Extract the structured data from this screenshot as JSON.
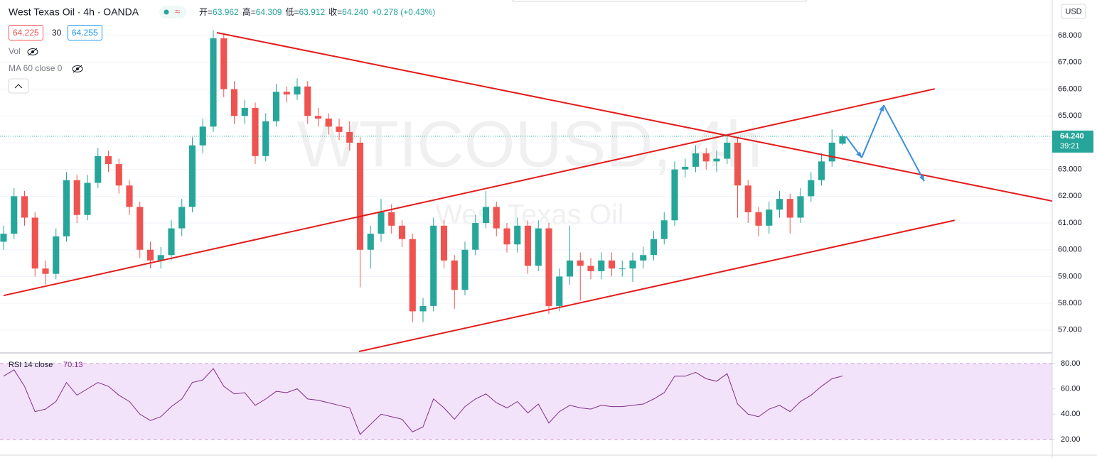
{
  "header": {
    "title": "West Texas Oil · 4h · OANDA",
    "ohlc": [
      [
        "开=",
        "63.962"
      ],
      [
        "高=",
        "64.309"
      ],
      [
        "低=",
        "63.912"
      ],
      [
        "收=",
        "64.240"
      ]
    ],
    "change": "+0.278 (+0.43%)",
    "sell": "64.225",
    "spread": "30",
    "buy": "64.255",
    "vol": "Vol",
    "ma": "MA 60 close 0",
    "rsi_legend": "RSI 14 close",
    "rsi_value": "70.13",
    "currency": "USD",
    "last_price": "64.240",
    "countdown": "39:21",
    "watermark": "WTICOUSD, 4h",
    "watermark_sub": "West Texas Oil"
  },
  "chart_data": [
    {
      "type": "candlestick",
      "up_color": "#26a69a",
      "down_color": "#ef5350",
      "grid": true,
      "xlim": [
        -0.339,
        100
      ],
      "ylim": [
        56.2,
        69.33
      ],
      "yticks": [
        {
          "value": 57,
          "label": "57.000"
        },
        {
          "value": 58,
          "label": "58.000"
        },
        {
          "value": 59,
          "label": "59.000"
        },
        {
          "value": 60,
          "label": "60.000"
        },
        {
          "value": 61,
          "label": "61.000"
        },
        {
          "value": 62,
          "label": "62.000"
        },
        {
          "value": 63,
          "label": "63.000"
        },
        {
          "value": 64,
          "label": "64.000"
        },
        {
          "value": 65,
          "label": "65.000"
        },
        {
          "value": 66,
          "label": "66.000"
        },
        {
          "value": 67,
          "label": "67.000"
        },
        {
          "value": 68,
          "label": "68.000"
        }
      ],
      "open": [
        60.3,
        60.6,
        62.0,
        61.2,
        59.3,
        59.1,
        60.5,
        62.6,
        61.3,
        62.5,
        63.5,
        63.2,
        62.4,
        61.6,
        60.0,
        59.6,
        59.8,
        60.8,
        61.6,
        63.9,
        64.6,
        67.9,
        66.0,
        65.0,
        65.3,
        63.5,
        64.8,
        65.9,
        65.8,
        66.1,
        65.0,
        64.9,
        64.6,
        64.4,
        64.0,
        60.0,
        60.6,
        61.4,
        60.9,
        60.4,
        57.7,
        57.9,
        60.9,
        59.6,
        58.5,
        60.0,
        61.0,
        61.6,
        60.8,
        60.2,
        60.9,
        59.4,
        60.8,
        57.9,
        59.0,
        59.6,
        59.4,
        59.2,
        59.6,
        59.3,
        59.3,
        59.6,
        59.8,
        60.4,
        61.1,
        63.0,
        63.1,
        63.6,
        63.3,
        63.4,
        64.0,
        62.4,
        61.4,
        60.9,
        61.5,
        61.9,
        61.2,
        62.0,
        62.6,
        63.3,
        63.962
      ],
      "high": [
        60.9,
        62.3,
        62.2,
        61.4,
        59.6,
        60.8,
        62.9,
        62.8,
        62.8,
        63.8,
        63.7,
        63.4,
        62.6,
        61.8,
        60.3,
        60.1,
        61.1,
        61.9,
        64.2,
        64.9,
        68.2,
        68.1,
        66.3,
        65.6,
        65.5,
        65.1,
        66.2,
        66.1,
        66.4,
        66.3,
        65.3,
        65.1,
        64.9,
        64.8,
        64.2,
        60.9,
        61.9,
        61.7,
        61.1,
        60.6,
        58.2,
        61.2,
        61.1,
        59.8,
        60.3,
        61.3,
        62.2,
        61.8,
        61.0,
        61.2,
        61.1,
        61.1,
        61.0,
        59.3,
        60.9,
        59.9,
        59.7,
        59.9,
        59.9,
        59.6,
        59.9,
        60.1,
        60.7,
        61.4,
        63.3,
        63.4,
        63.9,
        63.8,
        63.7,
        64.3,
        64.2,
        62.6,
        61.6,
        61.8,
        62.2,
        62.1,
        62.3,
        62.9,
        63.6,
        64.5,
        64.309
      ],
      "low": [
        60.0,
        60.4,
        60.9,
        59.0,
        58.7,
        58.9,
        60.3,
        61.0,
        61.1,
        62.3,
        62.9,
        62.1,
        61.3,
        59.7,
        59.3,
        59.3,
        59.6,
        60.5,
        61.4,
        63.6,
        64.4,
        65.7,
        64.7,
        64.7,
        63.2,
        63.3,
        64.6,
        65.5,
        65.6,
        64.7,
        64.6,
        64.3,
        64.1,
        63.7,
        58.6,
        59.3,
        60.3,
        60.6,
        60.1,
        57.3,
        57.3,
        57.7,
        59.3,
        57.8,
        58.3,
        59.8,
        60.8,
        60.5,
        59.9,
        59.9,
        59.1,
        59.2,
        57.6,
        57.7,
        58.7,
        58.1,
        58.9,
        58.9,
        59.0,
        59.0,
        58.8,
        59.3,
        59.6,
        60.2,
        60.9,
        62.7,
        62.9,
        63.0,
        62.9,
        63.2,
        61.2,
        61.0,
        60.5,
        60.6,
        61.2,
        60.6,
        61.0,
        61.8,
        62.4,
        63.1,
        63.912
      ],
      "close": [
        60.6,
        62.0,
        61.2,
        59.3,
        59.1,
        60.5,
        62.6,
        61.3,
        62.5,
        63.5,
        63.2,
        62.4,
        61.6,
        60.0,
        59.6,
        59.8,
        60.8,
        61.6,
        63.9,
        64.6,
        67.9,
        66.0,
        65.0,
        65.3,
        63.5,
        64.8,
        65.9,
        65.8,
        66.1,
        65.0,
        64.9,
        64.6,
        64.4,
        64.0,
        60.0,
        60.6,
        61.4,
        60.9,
        60.4,
        57.7,
        57.9,
        60.9,
        59.6,
        58.5,
        60.0,
        61.0,
        61.6,
        60.8,
        60.2,
        60.9,
        59.4,
        60.8,
        57.9,
        59.0,
        59.6,
        59.4,
        59.2,
        59.6,
        59.3,
        59.3,
        59.6,
        59.8,
        60.4,
        61.1,
        63.0,
        63.1,
        63.6,
        63.3,
        63.4,
        64.0,
        62.4,
        61.4,
        60.9,
        61.5,
        61.9,
        61.2,
        62.0,
        62.6,
        63.3,
        64.0,
        64.24
      ],
      "trendlines": [
        {
          "color": "#e31b1b",
          "points": [
            [
              20.34,
              68.11
            ],
            [
              100,
              61.82
            ]
          ]
        },
        {
          "color": "#e31b1b",
          "points": [
            [
              0,
              58.29
            ],
            [
              88.8,
              66.01
            ]
          ]
        },
        {
          "color": "#e31b1b",
          "points": [
            [
              33.9,
              56.2
            ],
            [
              90.7,
              61.1
            ]
          ]
        }
      ],
      "arrow": {
        "color": "#3b8ede",
        "points": [
          [
            80.34,
            64.23
          ],
          [
            81.83,
            63.44
          ],
          [
            83.93,
            65.4
          ],
          [
            87.8,
            62.56
          ]
        ]
      }
    },
    {
      "type": "line",
      "color": "#7e2f86",
      "band_color": "#f3e3fa",
      "xlim": [
        -0.339,
        100
      ],
      "ylim": [
        8.2,
        86.7
      ],
      "overbought": 80,
      "oversold": 20,
      "yticks": [
        {
          "value": 20,
          "label": "20.00"
        },
        {
          "value": 40,
          "label": "40.00"
        },
        {
          "value": 60,
          "label": "60.00"
        },
        {
          "value": 80,
          "label": "80.00"
        }
      ],
      "values": [
        70,
        75,
        62,
        42,
        44,
        50,
        65,
        55,
        60,
        65,
        62,
        55,
        50,
        40,
        35,
        38,
        46,
        52,
        65,
        67,
        76,
        62,
        56,
        57,
        47,
        52,
        58,
        57,
        60,
        52,
        51,
        49,
        47,
        45,
        24,
        32,
        40,
        38,
        36,
        26,
        30,
        52,
        45,
        36,
        46,
        52,
        56,
        49,
        45,
        50,
        41,
        48,
        33,
        42,
        47,
        45,
        44,
        47,
        46,
        46,
        47,
        48,
        52,
        57,
        70,
        70,
        73,
        68,
        66,
        72,
        48,
        40,
        38,
        44,
        47,
        42,
        50,
        55,
        62,
        68,
        70.13
      ]
    }
  ]
}
